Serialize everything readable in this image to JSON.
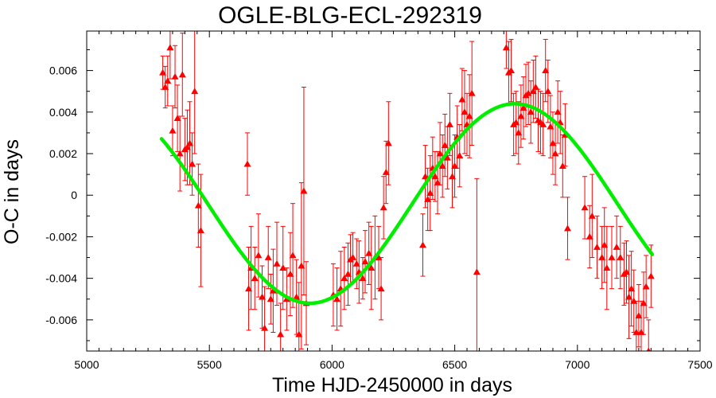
{
  "chart_data": {
    "type": "scatter",
    "title": "OGLE-BLG-ECL-292319",
    "xlabel": "Time HJD-2450000 in days",
    "ylabel": "O-C in days",
    "xlim": [
      5000,
      7500
    ],
    "ylim": [
      -0.0075,
      0.0079
    ],
    "x_ticks": [
      5000,
      5500,
      6000,
      6500,
      7000,
      7500
    ],
    "x_tick_labels": [
      "5000",
      "5500",
      "6000",
      "6500",
      "7000",
      "7500"
    ],
    "y_ticks": [
      0.006,
      0.004,
      0.002,
      0,
      -0.002,
      -0.004,
      -0.006
    ],
    "y_tick_labels": [
      "0.006",
      "0.004",
      "0.002",
      "0",
      "-0.002",
      "-0.004",
      "-0.006"
    ],
    "grid": false,
    "series": [
      {
        "kind": "points-with-errorbars",
        "color": "#ff0000",
        "marker": "triangle",
        "points": [
          {
            "x": 5310,
            "y": 0.0059,
            "err": 0.0008
          },
          {
            "x": 5320,
            "y": 0.0052,
            "err": 0.001
          },
          {
            "x": 5330,
            "y": 0.0055,
            "err": 0.0012
          },
          {
            "x": 5340,
            "y": 0.0071,
            "err": 0.0015
          },
          {
            "x": 5350,
            "y": 0.0031,
            "err": 0.0012
          },
          {
            "x": 5360,
            "y": 0.0057,
            "err": 0.0015
          },
          {
            "x": 5370,
            "y": 0.0037,
            "err": 0.0016
          },
          {
            "x": 5380,
            "y": 0.002,
            "err": 0.0018
          },
          {
            "x": 5390,
            "y": 0.0058,
            "err": 0.002
          },
          {
            "x": 5400,
            "y": 0.0022,
            "err": 0.0015
          },
          {
            "x": 5410,
            "y": 0.0023,
            "err": 0.0018
          },
          {
            "x": 5420,
            "y": 0.0025,
            "err": 0.002
          },
          {
            "x": 5430,
            "y": 0.0015,
            "err": 0.0015
          },
          {
            "x": 5440,
            "y": 0.005,
            "err": 0.003
          },
          {
            "x": 5455,
            "y": -0.0005,
            "err": 0.002
          },
          {
            "x": 5465,
            "y": -0.0017,
            "err": 0.0027
          },
          {
            "x": 5655,
            "y": 0.0015,
            "err": 0.0015
          },
          {
            "x": 5660,
            "y": -0.0045,
            "err": 0.002
          },
          {
            "x": 5670,
            "y": -0.0035,
            "err": 0.002
          },
          {
            "x": 5685,
            "y": -0.004,
            "err": 0.0015
          },
          {
            "x": 5700,
            "y": -0.0029,
            "err": 0.002
          },
          {
            "x": 5715,
            "y": -0.0049,
            "err": 0.0015
          },
          {
            "x": 5725,
            "y": -0.0064,
            "err": 0.002
          },
          {
            "x": 5740,
            "y": -0.003,
            "err": 0.0015
          },
          {
            "x": 5750,
            "y": -0.005,
            "err": 0.0012
          },
          {
            "x": 5760,
            "y": -0.0046,
            "err": 0.002
          },
          {
            "x": 5775,
            "y": -0.0033,
            "err": 0.002
          },
          {
            "x": 5790,
            "y": -0.0067,
            "err": 0.0015
          },
          {
            "x": 5800,
            "y": -0.0035,
            "err": 0.002
          },
          {
            "x": 5815,
            "y": -0.005,
            "err": 0.0015
          },
          {
            "x": 5830,
            "y": -0.0038,
            "err": 0.002
          },
          {
            "x": 5840,
            "y": -0.0029,
            "err": 0.0025
          },
          {
            "x": 5855,
            "y": -0.0049,
            "err": 0.0018
          },
          {
            "x": 5865,
            "y": -0.0067,
            "err": 0.0025
          },
          {
            "x": 5875,
            "y": -0.0034,
            "err": 0.004
          },
          {
            "x": 5885,
            "y": 0.0002,
            "err": 0.005
          },
          {
            "x": 5895,
            "y": -0.0052,
            "err": 0.002
          },
          {
            "x": 6005,
            "y": -0.0048,
            "err": 0.0015
          },
          {
            "x": 6020,
            "y": -0.005,
            "err": 0.0015
          },
          {
            "x": 6035,
            "y": -0.0045,
            "err": 0.0018
          },
          {
            "x": 6050,
            "y": -0.004,
            "err": 0.0015
          },
          {
            "x": 6065,
            "y": -0.0038,
            "err": 0.0015
          },
          {
            "x": 6075,
            "y": -0.0031,
            "err": 0.0012
          },
          {
            "x": 6085,
            "y": -0.003,
            "err": 0.0012
          },
          {
            "x": 6100,
            "y": -0.0033,
            "err": 0.0012
          },
          {
            "x": 6110,
            "y": -0.0037,
            "err": 0.0015
          },
          {
            "x": 6125,
            "y": -0.004,
            "err": 0.001
          },
          {
            "x": 6135,
            "y": -0.0032,
            "err": 0.0015
          },
          {
            "x": 6150,
            "y": -0.0028,
            "err": 0.0015
          },
          {
            "x": 6160,
            "y": -0.0035,
            "err": 0.002
          },
          {
            "x": 6175,
            "y": -0.003,
            "err": 0.002
          },
          {
            "x": 6190,
            "y": -0.003,
            "err": 0.0015
          },
          {
            "x": 6200,
            "y": -0.0045,
            "err": 0.0015
          },
          {
            "x": 6210,
            "y": -0.0006,
            "err": 0.0015
          },
          {
            "x": 6220,
            "y": 0.0011,
            "err": 0.0015
          },
          {
            "x": 6230,
            "y": 0.0025,
            "err": 0.002
          },
          {
            "x": 6370,
            "y": -0.0024,
            "err": 0.0015
          },
          {
            "x": 6380,
            "y": 0.0009,
            "err": 0.0015
          },
          {
            "x": 6390,
            "y": -0.0002,
            "err": 0.0015
          },
          {
            "x": 6400,
            "y": 0.0001,
            "err": 0.0018
          },
          {
            "x": 6410,
            "y": 0.0013,
            "err": 0.0015
          },
          {
            "x": 6420,
            "y": 0.0009,
            "err": 0.0012
          },
          {
            "x": 6430,
            "y": 0.0006,
            "err": 0.0015
          },
          {
            "x": 6440,
            "y": 0.002,
            "err": 0.0015
          },
          {
            "x": 6450,
            "y": 0.0014,
            "err": 0.0015
          },
          {
            "x": 6460,
            "y": 0.0024,
            "err": 0.0015
          },
          {
            "x": 6470,
            "y": 0.0018,
            "err": 0.0015
          },
          {
            "x": 6480,
            "y": 0.0034,
            "err": 0.0015
          },
          {
            "x": 6490,
            "y": 0.0009,
            "err": 0.0015
          },
          {
            "x": 6500,
            "y": 0.0014,
            "err": 0.0015
          },
          {
            "x": 6510,
            "y": 0.0028,
            "err": 0.0015
          },
          {
            "x": 6520,
            "y": 0.0019,
            "err": 0.0015
          },
          {
            "x": 6530,
            "y": 0.0046,
            "err": 0.0015
          },
          {
            "x": 6540,
            "y": 0.004,
            "err": 0.002
          },
          {
            "x": 6550,
            "y": 0.0034,
            "err": 0.0015
          },
          {
            "x": 6560,
            "y": 0.0038,
            "err": 0.002
          },
          {
            "x": 6570,
            "y": 0.0049,
            "err": 0.0025
          },
          {
            "x": 6590,
            "y": -0.0037,
            "err": 0.0045
          },
          {
            "x": 6710,
            "y": 0.0071,
            "err": 0.001
          },
          {
            "x": 6720,
            "y": 0.0059,
            "err": 0.0015
          },
          {
            "x": 6730,
            "y": 0.006,
            "err": 0.0015
          },
          {
            "x": 6740,
            "y": 0.0034,
            "err": 0.0015
          },
          {
            "x": 6750,
            "y": 0.0035,
            "err": 0.0015
          },
          {
            "x": 6760,
            "y": 0.003,
            "err": 0.0015
          },
          {
            "x": 6770,
            "y": 0.0038,
            "err": 0.0015
          },
          {
            "x": 6780,
            "y": 0.0042,
            "err": 0.0015
          },
          {
            "x": 6790,
            "y": 0.0048,
            "err": 0.0015
          },
          {
            "x": 6800,
            "y": 0.0049,
            "err": 0.0015
          },
          {
            "x": 6810,
            "y": 0.004,
            "err": 0.0015
          },
          {
            "x": 6820,
            "y": 0.005,
            "err": 0.0015
          },
          {
            "x": 6830,
            "y": 0.0052,
            "err": 0.0015
          },
          {
            "x": 6840,
            "y": 0.0036,
            "err": 0.0015
          },
          {
            "x": 6850,
            "y": 0.0035,
            "err": 0.0015
          },
          {
            "x": 6860,
            "y": 0.0034,
            "err": 0.0015
          },
          {
            "x": 6870,
            "y": 0.006,
            "err": 0.0015
          },
          {
            "x": 6880,
            "y": 0.005,
            "err": 0.0015
          },
          {
            "x": 6890,
            "y": 0.0033,
            "err": 0.0015
          },
          {
            "x": 6900,
            "y": 0.0025,
            "err": 0.0015
          },
          {
            "x": 6910,
            "y": 0.002,
            "err": 0.0015
          },
          {
            "x": 6920,
            "y": 0.004,
            "err": 0.0015
          },
          {
            "x": 6930,
            "y": 0.0035,
            "err": 0.0015
          },
          {
            "x": 6940,
            "y": 0.0014,
            "err": 0.0015
          },
          {
            "x": 6950,
            "y": 0.0029,
            "err": 0.0015
          },
          {
            "x": 6960,
            "y": -0.0016,
            "err": 0.0015
          },
          {
            "x": 7030,
            "y": -0.0006,
            "err": 0.0015
          },
          {
            "x": 7050,
            "y": -0.002,
            "err": 0.0015
          },
          {
            "x": 7060,
            "y": -0.001,
            "err": 0.002
          },
          {
            "x": 7080,
            "y": -0.0025,
            "err": 0.0015
          },
          {
            "x": 7100,
            "y": -0.003,
            "err": 0.0015
          },
          {
            "x": 7110,
            "y": -0.0024,
            "err": 0.0018
          },
          {
            "x": 7120,
            "y": -0.0035,
            "err": 0.002
          },
          {
            "x": 7140,
            "y": -0.003,
            "err": 0.0015
          },
          {
            "x": 7160,
            "y": -0.0025,
            "err": 0.0015
          },
          {
            "x": 7175,
            "y": -0.003,
            "err": 0.0015
          },
          {
            "x": 7190,
            "y": -0.0038,
            "err": 0.0015
          },
          {
            "x": 7200,
            "y": -0.0037,
            "err": 0.0015
          },
          {
            "x": 7210,
            "y": -0.0049,
            "err": 0.002
          },
          {
            "x": 7220,
            "y": -0.0045,
            "err": 0.0018
          },
          {
            "x": 7230,
            "y": -0.0051,
            "err": 0.0015
          },
          {
            "x": 7240,
            "y": -0.0066,
            "err": 0.0015
          },
          {
            "x": 7250,
            "y": -0.0058,
            "err": 0.0015
          },
          {
            "x": 7260,
            "y": -0.0066,
            "err": 0.0015
          },
          {
            "x": 7270,
            "y": -0.0052,
            "err": 0.0015
          },
          {
            "x": 7280,
            "y": -0.0044,
            "err": 0.0015
          },
          {
            "x": 7290,
            "y": -0.0075,
            "err": 0.0015
          },
          {
            "x": 7300,
            "y": -0.0039,
            "err": 0.0015
          }
        ]
      },
      {
        "kind": "fit-curve",
        "color": "#00ee00",
        "function": "sinusoid",
        "offset": -0.0004,
        "amplitude": 0.0048,
        "period": 1670,
        "peak_x": 6745,
        "x_range": [
          5305,
          7305
        ]
      }
    ]
  }
}
